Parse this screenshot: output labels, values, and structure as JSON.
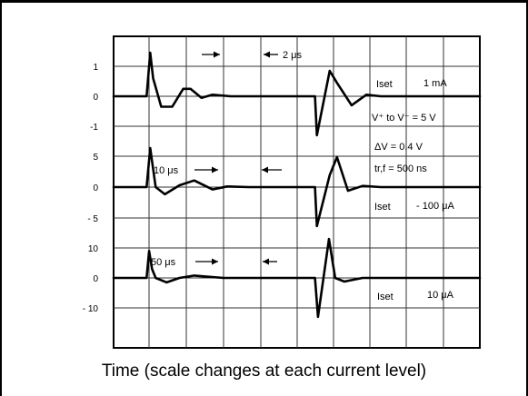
{
  "chart_data": {
    "type": "line",
    "x_unit": "grid divisions",
    "xlim": [
      0,
      10
    ],
    "grid": true,
    "caption": "Time (scale changes at each current level)",
    "annotations": {
      "tb1": "2 μs",
      "tb2": "10 μs",
      "tb3": "50 μs",
      "cond1": "V⁺ to V⁻ = 5 V",
      "cond2": "ΔV = 0.4 V",
      "cond3": "tr,f = 500 ns"
    },
    "series": [
      {
        "name": "Iset 1 mA",
        "iset_label": "Iset",
        "current_label": "1 mA",
        "yticks": [
          "1",
          "0",
          "-1"
        ],
        "ylim": [
          -1.5,
          1.5
        ],
        "x": [
          0,
          0.9,
          1.0,
          1.08,
          1.3,
          1.6,
          1.9,
          2.1,
          2.4,
          2.7,
          3.2,
          5.0,
          5.5,
          5.55,
          5.9,
          6.1,
          6.5,
          6.9,
          7.3,
          8,
          10
        ],
        "y": [
          0,
          0,
          1.45,
          0.6,
          -0.35,
          -0.35,
          0.25,
          0.25,
          -0.05,
          0.05,
          0,
          0,
          0,
          -1.3,
          0.85,
          0.45,
          -0.3,
          0.05,
          0,
          0,
          0
        ]
      },
      {
        "name": "Iset 100 μA",
        "iset_label": "Iset",
        "current_label": "- 100 μA",
        "yticks": [
          "5",
          "0",
          "- 5"
        ],
        "ylim": [
          -7.5,
          7.5
        ],
        "x": [
          0,
          0.9,
          1.0,
          1.15,
          1.4,
          1.8,
          2.2,
          2.7,
          3.1,
          3.7,
          5.0,
          5.5,
          5.55,
          5.9,
          6.1,
          6.4,
          6.8,
          7.3,
          10
        ],
        "y": [
          0,
          0,
          6.5,
          0,
          -1.2,
          0.3,
          1.1,
          -0.4,
          0.1,
          0,
          0,
          0,
          -6.5,
          2,
          5,
          -0.6,
          0.2,
          0,
          0
        ]
      },
      {
        "name": "Iset 10 μA",
        "iset_label": "Iset",
        "current_label": "10 μA",
        "yticks": [
          "10",
          "0",
          "- 10"
        ],
        "ylim": [
          -15,
          15
        ],
        "x": [
          0,
          0.9,
          0.97,
          1.05,
          1.15,
          1.45,
          1.8,
          2.2,
          3.0,
          5.0,
          5.5,
          5.58,
          5.88,
          6.05,
          6.3,
          6.8,
          10
        ],
        "y": [
          0,
          0,
          9,
          3,
          0,
          -1.5,
          0,
          0.8,
          0,
          0,
          0,
          -13,
          13,
          0,
          -1.2,
          0,
          0
        ]
      }
    ]
  }
}
